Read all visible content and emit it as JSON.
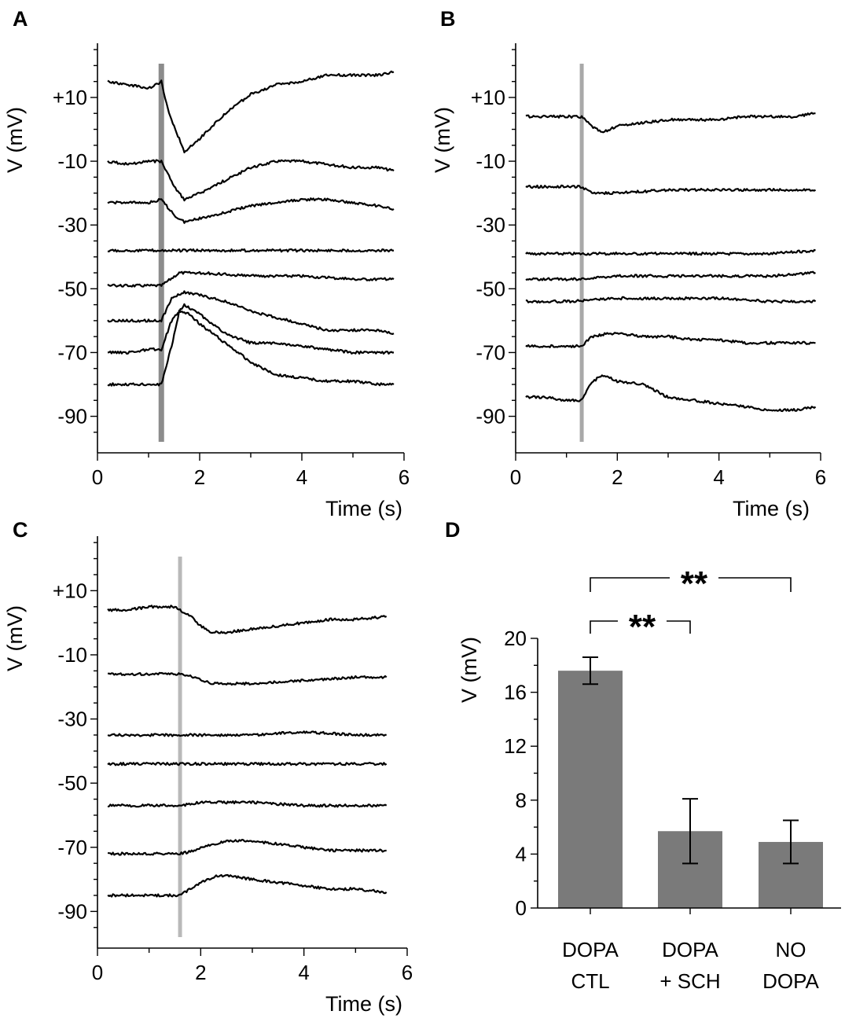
{
  "chart_data": [
    {
      "panel": "A",
      "type": "line",
      "ylabel": "V (mV)",
      "xlabel": "Time (s)",
      "xlim": [
        0,
        6
      ],
      "ylim": [
        -98,
        27
      ],
      "xticks": [
        "0",
        "2",
        "4",
        "6"
      ],
      "yticks": [
        "+10",
        "-10",
        "-30",
        "-50",
        "-70",
        "-90"
      ],
      "ytick_values": [
        10,
        -10,
        -30,
        -50,
        -70,
        -90
      ],
      "stimulus_time": 1.25,
      "stimulus_color": "#8c8c8c",
      "series": [
        {
          "name": "trace-1",
          "x": [
            0.2,
            0.6,
            1.0,
            1.15,
            1.25,
            1.4,
            1.7,
            2.0,
            2.5,
            3.0,
            3.5,
            4.0,
            4.5,
            5.0,
            5.5,
            5.8
          ],
          "y": [
            15,
            14,
            13,
            14,
            15,
            5,
            -7,
            -3,
            5,
            11,
            14,
            15,
            17,
            17,
            17,
            18
          ]
        },
        {
          "name": "trace-2",
          "x": [
            0.2,
            0.6,
            1.0,
            1.25,
            1.5,
            1.7,
            2.0,
            2.5,
            3.0,
            3.5,
            4.0,
            4.5,
            5.0,
            5.5,
            5.8
          ],
          "y": [
            -10,
            -11,
            -10,
            -10,
            -18,
            -22,
            -20,
            -16,
            -12,
            -10,
            -10,
            -11,
            -12,
            -12,
            -13
          ]
        },
        {
          "name": "trace-3",
          "x": [
            0.2,
            0.6,
            1.0,
            1.25,
            1.5,
            1.7,
            2.0,
            2.5,
            3.0,
            3.5,
            4.0,
            4.5,
            5.0,
            5.5,
            5.8
          ],
          "y": [
            -23,
            -23,
            -23,
            -22,
            -27,
            -29,
            -28,
            -26,
            -24,
            -23,
            -22,
            -22,
            -23,
            -24,
            -25
          ]
        },
        {
          "name": "trace-4",
          "x": [
            0.2,
            1.0,
            2.0,
            3.0,
            4.0,
            5.0,
            5.8
          ],
          "y": [
            -38,
            -38,
            -38,
            -38,
            -38,
            -38,
            -38
          ]
        },
        {
          "name": "trace-5",
          "x": [
            0.2,
            0.6,
            1.0,
            1.25,
            1.6,
            2.0,
            3.0,
            4.0,
            5.0,
            5.8
          ],
          "y": [
            -49,
            -49,
            -49,
            -49,
            -45,
            -45,
            -46,
            -46,
            -47,
            -47
          ]
        },
        {
          "name": "trace-6",
          "x": [
            0.2,
            0.6,
            1.0,
            1.25,
            1.45,
            1.7,
            2.0,
            2.5,
            3.0,
            3.5,
            4.0,
            4.5,
            5.0,
            5.5,
            5.8
          ],
          "y": [
            -60,
            -60,
            -60,
            -60,
            -53,
            -51,
            -52,
            -54,
            -57,
            -59,
            -61,
            -63,
            -63,
            -63,
            -64
          ]
        },
        {
          "name": "trace-7",
          "x": [
            0.2,
            0.6,
            1.0,
            1.25,
            1.45,
            1.7,
            2.0,
            2.5,
            3.0,
            3.5,
            4.0,
            4.5,
            5.0,
            5.5,
            5.8
          ],
          "y": [
            -70,
            -70,
            -69,
            -69,
            -60,
            -55,
            -58,
            -64,
            -67,
            -67,
            -68,
            -69,
            -70,
            -70,
            -70
          ]
        },
        {
          "name": "trace-8",
          "x": [
            0.2,
            0.6,
            1.0,
            1.25,
            1.45,
            1.6,
            1.8,
            2.0,
            2.5,
            3.0,
            3.5,
            4.0,
            4.5,
            5.0,
            5.5,
            5.8
          ],
          "y": [
            -80,
            -80,
            -80,
            -80,
            -68,
            -57,
            -58,
            -61,
            -67,
            -73,
            -77,
            -78,
            -79,
            -79,
            -80,
            -80
          ]
        }
      ]
    },
    {
      "panel": "B",
      "type": "line",
      "ylabel": "V (mV)",
      "xlabel": "Time (s)",
      "xlim": [
        0,
        6
      ],
      "ylim": [
        -98,
        27
      ],
      "xticks": [
        "0",
        "2",
        "4",
        "6"
      ],
      "yticks": [
        "+10",
        "-10",
        "-30",
        "-50",
        "-70",
        "-90"
      ],
      "ytick_values": [
        10,
        -10,
        -30,
        -50,
        -70,
        -90
      ],
      "stimulus_time": 1.3,
      "stimulus_color": "#a9a9a9",
      "series": [
        {
          "name": "trace-1",
          "x": [
            0.2,
            0.6,
            1.0,
            1.3,
            1.5,
            1.7,
            2.0,
            2.5,
            3.0,
            3.5,
            4.0,
            4.5,
            5.0,
            5.5,
            5.9
          ],
          "y": [
            4,
            4,
            4,
            4,
            1,
            -1,
            1,
            2,
            3,
            3,
            3,
            4,
            4,
            4,
            5
          ]
        },
        {
          "name": "trace-2",
          "x": [
            0.2,
            0.6,
            1.0,
            1.3,
            1.5,
            2.0,
            3.0,
            4.0,
            5.0,
            5.9
          ],
          "y": [
            -18,
            -18,
            -18,
            -18,
            -20,
            -20,
            -19,
            -19,
            -19,
            -19
          ]
        },
        {
          "name": "trace-3",
          "x": [
            0.2,
            1.0,
            2.0,
            3.0,
            4.0,
            5.0,
            5.9
          ],
          "y": [
            -39,
            -39,
            -39,
            -39,
            -39,
            -39,
            -38
          ]
        },
        {
          "name": "trace-4",
          "x": [
            0.2,
            1.0,
            1.3,
            2.0,
            3.0,
            4.0,
            5.0,
            5.9
          ],
          "y": [
            -47,
            -47,
            -47,
            -46,
            -46,
            -46,
            -46,
            -45
          ]
        },
        {
          "name": "trace-5",
          "x": [
            0.2,
            1.0,
            2.0,
            3.0,
            4.0,
            5.0,
            5.9
          ],
          "y": [
            -54,
            -54,
            -53,
            -53,
            -53,
            -54,
            -54
          ]
        },
        {
          "name": "trace-6",
          "x": [
            0.2,
            0.6,
            1.0,
            1.3,
            1.5,
            1.8,
            2.0,
            2.5,
            3.0,
            3.5,
            4.0,
            4.5,
            5.0,
            5.5,
            5.9
          ],
          "y": [
            -68,
            -68,
            -68,
            -68,
            -65,
            -64,
            -64,
            -65,
            -65,
            -66,
            -66,
            -67,
            -67,
            -67,
            -67
          ]
        },
        {
          "name": "trace-7",
          "x": [
            0.2,
            0.6,
            1.0,
            1.3,
            1.45,
            1.7,
            2.0,
            2.5,
            3.0,
            3.5,
            4.0,
            4.5,
            5.0,
            5.5,
            5.9
          ],
          "y": [
            -84,
            -84,
            -85,
            -85,
            -80,
            -77,
            -79,
            -80,
            -84,
            -85,
            -86,
            -87,
            -88,
            -88,
            -87
          ]
        }
      ]
    },
    {
      "panel": "C",
      "type": "line",
      "ylabel": "V (mV)",
      "xlabel": "Time (s)",
      "xlim": [
        0,
        6
      ],
      "ylim": [
        -98,
        27
      ],
      "xticks": [
        "0",
        "2",
        "4",
        "6"
      ],
      "yticks": [
        "+10",
        "-10",
        "-30",
        "-50",
        "-70",
        "-90"
      ],
      "ytick_values": [
        10,
        -10,
        -30,
        -50,
        -70,
        -90
      ],
      "stimulus_time": 1.6,
      "stimulus_color": "#b9b9b9",
      "series": [
        {
          "name": "trace-1",
          "x": [
            0.2,
            0.6,
            1.0,
            1.5,
            1.8,
            2.0,
            2.2,
            2.5,
            3.0,
            3.5,
            4.0,
            4.5,
            5.0,
            5.6
          ],
          "y": [
            4,
            4,
            5,
            5,
            2,
            -1,
            -3,
            -3,
            -2,
            -1,
            0,
            1,
            1,
            2
          ]
        },
        {
          "name": "trace-2",
          "x": [
            0.2,
            0.6,
            1.0,
            1.6,
            1.9,
            2.2,
            2.5,
            3.0,
            4.0,
            5.0,
            5.6
          ],
          "y": [
            -16,
            -16,
            -16,
            -16,
            -17,
            -19,
            -19,
            -19,
            -18,
            -17,
            -17
          ]
        },
        {
          "name": "trace-3",
          "x": [
            0.2,
            1.0,
            2.0,
            3.0,
            4.0,
            5.0,
            5.6
          ],
          "y": [
            -35,
            -35,
            -35,
            -35,
            -34,
            -35,
            -35
          ]
        },
        {
          "name": "trace-4",
          "x": [
            0.2,
            1.0,
            2.0,
            3.0,
            4.0,
            5.0,
            5.6
          ],
          "y": [
            -44,
            -44,
            -44,
            -44,
            -44,
            -44,
            -44
          ]
        },
        {
          "name": "trace-5",
          "x": [
            0.2,
            1.0,
            1.6,
            2.0,
            3.0,
            4.0,
            5.0,
            5.6
          ],
          "y": [
            -57,
            -57,
            -57,
            -56,
            -56,
            -57,
            -57,
            -57
          ]
        },
        {
          "name": "trace-6",
          "x": [
            0.2,
            0.6,
            1.0,
            1.6,
            1.9,
            2.2,
            2.6,
            3.0,
            3.5,
            4.0,
            4.5,
            5.0,
            5.6
          ],
          "y": [
            -72,
            -72,
            -72,
            -72,
            -71,
            -69,
            -68,
            -68,
            -69,
            -70,
            -71,
            -71,
            -71
          ]
        },
        {
          "name": "trace-7",
          "x": [
            0.2,
            0.6,
            1.0,
            1.6,
            1.8,
            2.0,
            2.3,
            2.6,
            3.0,
            3.5,
            4.0,
            4.5,
            5.0,
            5.6
          ],
          "y": [
            -85,
            -85,
            -85,
            -85,
            -83,
            -81,
            -79,
            -79,
            -80,
            -81,
            -82,
            -83,
            -83,
            -84
          ]
        }
      ]
    },
    {
      "panel": "D",
      "type": "bar",
      "ylabel": "V (mV)",
      "ylim": [
        0,
        20
      ],
      "yticks": [
        "0",
        "4",
        "8",
        "12",
        "16",
        "20"
      ],
      "ytick_values": [
        0,
        4,
        8,
        12,
        16,
        20
      ],
      "categories": [
        [
          "DOPA",
          "CTL"
        ],
        [
          "DOPA",
          "+ SCH"
        ],
        [
          "NO",
          "DOPA"
        ]
      ],
      "values": [
        17.6,
        5.7,
        4.9
      ],
      "errors": [
        1.0,
        2.4,
        1.6
      ],
      "bar_color": "#7a7a7a",
      "significance": [
        {
          "from": 0,
          "to": 1,
          "label": "**"
        },
        {
          "from": 0,
          "to": 2,
          "label": "**"
        }
      ]
    }
  ]
}
